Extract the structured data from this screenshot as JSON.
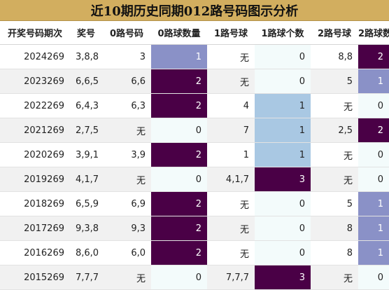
{
  "title": "近10期历史同期012路号码图示分析",
  "headers": [
    "开奖号码期次",
    "奖号",
    "0路号码",
    "0路球数量",
    "1路号球",
    "1路球个数",
    "2路号球",
    "2路球数"
  ],
  "rows": [
    {
      "period": "2024269",
      "number": "3,8,8",
      "r0": "3",
      "c0": "1",
      "r1": "无",
      "c1": "0",
      "r2": "8,8",
      "c2": "2"
    },
    {
      "period": "2023269",
      "number": "6,6,5",
      "r0": "6,6",
      "c0": "2",
      "r1": "无",
      "c1": "0",
      "r2": "5",
      "c2": "1"
    },
    {
      "period": "2022269",
      "number": "6,4,3",
      "r0": "6,3",
      "c0": "2",
      "r1": "4",
      "c1": "1",
      "r2": "无",
      "c2": "0"
    },
    {
      "period": "2021269",
      "number": "2,7,5",
      "r0": "无",
      "c0": "0",
      "r1": "7",
      "c1": "1",
      "r2": "2,5",
      "c2": "2"
    },
    {
      "period": "2020269",
      "number": "3,9,1",
      "r0": "3,9",
      "c0": "2",
      "r1": "1",
      "c1": "1",
      "r2": "无",
      "c2": "0"
    },
    {
      "period": "2019269",
      "number": "4,1,7",
      "r0": "无",
      "c0": "0",
      "r1": "4,1,7",
      "c1": "3",
      "r2": "无",
      "c2": "0"
    },
    {
      "period": "2018269",
      "number": "6,5,9",
      "r0": "6,9",
      "c0": "2",
      "r1": "无",
      "c1": "0",
      "r2": "5",
      "c2": "1"
    },
    {
      "period": "2017269",
      "number": "9,3,8",
      "r0": "9,3",
      "c0": "2",
      "r1": "无",
      "c1": "0",
      "r2": "8",
      "c2": "1"
    },
    {
      "period": "2016269",
      "number": "8,6,0",
      "r0": "6,0",
      "c0": "2",
      "r1": "无",
      "c1": "0",
      "r2": "8",
      "c2": "1"
    },
    {
      "period": "2015269",
      "number": "7,7,7",
      "r0": "无",
      "c0": "0",
      "r1": "7,7,7",
      "c1": "3",
      "r2": "无",
      "c2": "0"
    }
  ],
  "colors": {
    "title_bg": "#d2ae5f",
    "count_zero": "#f3fbfb",
    "count_one_blue": "#8a91c7",
    "count_one_light": "#a9c8e3",
    "count_two_plus": "#4a0046",
    "row_stripe": "#f1f1f1"
  }
}
